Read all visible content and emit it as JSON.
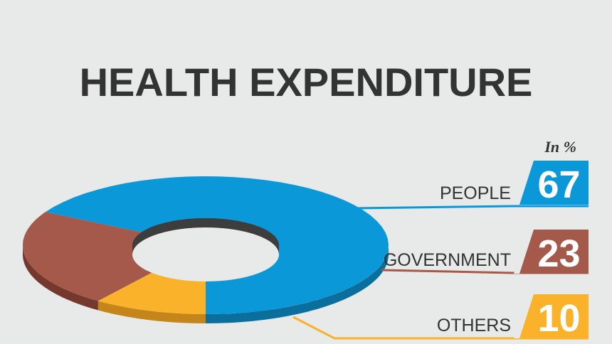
{
  "chart_data": {
    "type": "pie",
    "variant": "donut-3d",
    "title": "HEALTH EXPENDITURE",
    "unit_note": "In %",
    "categories": [
      "PEOPLE",
      "GOVERNMENT",
      "OTHERS"
    ],
    "values": [
      67,
      23,
      10
    ],
    "value_labels": [
      "67",
      "23",
      "10"
    ],
    "colors": [
      "#0a98d8",
      "#a4594a",
      "#f9b22a"
    ],
    "side_colors": [
      "#0b6f9e",
      "#74382d",
      "#c4861a"
    ],
    "legend_position": "right"
  }
}
